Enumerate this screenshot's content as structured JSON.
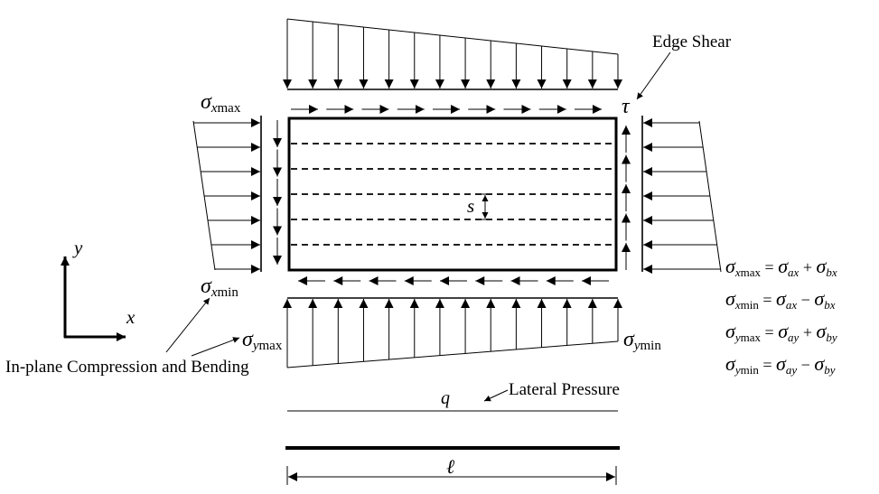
{
  "labels": {
    "edge_shear": "Edge Shear",
    "tau": "τ",
    "in_plane": "In-plane Compression and Bending",
    "lateral_pressure": "Lateral Pressure",
    "q": "q",
    "s": "s",
    "ell": "ℓ",
    "axis_x": "x",
    "axis_y": "y",
    "sigma": "σ",
    "sub_x": "x",
    "sub_y": "y",
    "sub_max": "max",
    "sub_min": "min"
  },
  "equations": [
    {
      "lhs_axis": "x",
      "lhs_ext": "max",
      "op": "=",
      "a": "ax",
      "sign": "+",
      "b": "bx"
    },
    {
      "lhs_axis": "x",
      "lhs_ext": "min",
      "op": "=",
      "a": "ax",
      "sign": "−",
      "b": "bx"
    },
    {
      "lhs_axis": "y",
      "lhs_ext": "max",
      "op": "=",
      "a": "ay",
      "sign": "+",
      "b": "by"
    },
    {
      "lhs_axis": "y",
      "lhs_ext": "min",
      "op": "=",
      "a": "ay",
      "sign": "−",
      "b": "by"
    }
  ]
}
